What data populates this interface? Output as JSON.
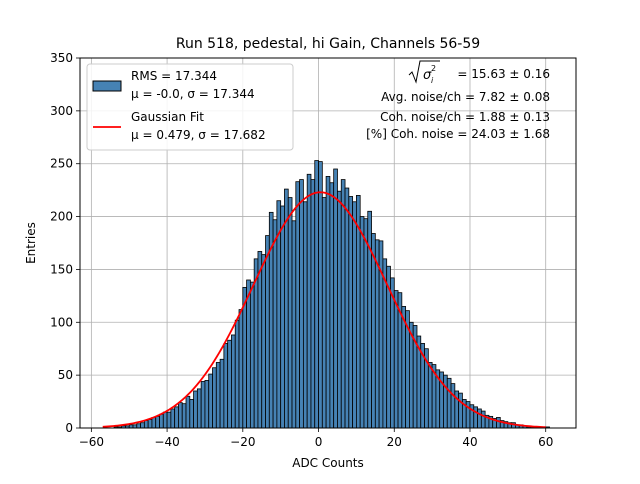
{
  "chart_data": {
    "type": "bar",
    "title": "Run 518, pedestal, hi Gain, Channels 56-59",
    "xlabel": "ADC Counts",
    "ylabel": "Entries",
    "xlim": [
      -63,
      68
    ],
    "ylim": [
      0,
      350
    ],
    "xticks": [
      -60,
      -40,
      -20,
      0,
      20,
      40,
      60
    ],
    "yticks": [
      0,
      50,
      100,
      150,
      200,
      250,
      300,
      350
    ],
    "grid": true,
    "bar_color": "#4682b4",
    "fit_color": "#ff0000",
    "legend_position": "upper-left",
    "legend": {
      "histogram_line1": "RMS = 17.344",
      "histogram_line2": "μ = -0.0, σ = 17.344",
      "fit_line1": "Gaussian Fit",
      "fit_line2": "μ = 0.479, σ = 17.682"
    },
    "annotations": {
      "sigma_value": "= 15.63 ± 0.16",
      "avg_noise": "Avg. noise/ch = 7.82 ± 0.08",
      "coh_noise": "Coh. noise/ch = 1.88 ± 0.13",
      "coh_noise_pct": "[%] Coh. noise = 24.03 ± 1.68"
    },
    "histogram": {
      "bin_width": 1,
      "x": [
        -56,
        -55,
        -54,
        -53,
        -52,
        -51,
        -50,
        -49,
        -48,
        -47,
        -46,
        -45,
        -44,
        -43,
        -42,
        -41,
        -40,
        -39,
        -38,
        -37,
        -36,
        -35,
        -34,
        -33,
        -32,
        -31,
        -30,
        -29,
        -28,
        -27,
        -26,
        -25,
        -24,
        -23,
        -22,
        -21,
        -20,
        -19,
        -18,
        -17,
        -16,
        -15,
        -14,
        -13,
        -12,
        -11,
        -10,
        -9,
        -8,
        -7,
        -6,
        -5,
        -4,
        -3,
        -2,
        -1,
        0,
        1,
        2,
        3,
        4,
        5,
        6,
        7,
        8,
        9,
        10,
        11,
        12,
        13,
        14,
        15,
        16,
        17,
        18,
        19,
        20,
        21,
        22,
        23,
        24,
        25,
        26,
        27,
        28,
        29,
        30,
        31,
        32,
        33,
        34,
        35,
        36,
        37,
        38,
        39,
        40,
        41,
        42,
        43,
        44,
        45,
        46,
        47,
        48,
        49,
        50,
        51,
        52,
        53,
        54,
        55,
        56,
        57,
        58,
        59,
        60,
        61
      ],
      "values": [
        0,
        0,
        1,
        1,
        2,
        2,
        3,
        3,
        4,
        5,
        7,
        8,
        10,
        11,
        13,
        15,
        15,
        18,
        20,
        24,
        23,
        30,
        27,
        35,
        37,
        44,
        45,
        51,
        57,
        62,
        65,
        80,
        83,
        88,
        102,
        112,
        133,
        140,
        138,
        160,
        167,
        164,
        182,
        204,
        197,
        215,
        210,
        226,
        218,
        196,
        233,
        235,
        214,
        240,
        235,
        253,
        252,
        218,
        238,
        232,
        245,
        224,
        235,
        227,
        219,
        214,
        220,
        200,
        198,
        205,
        184,
        178,
        177,
        160,
        153,
        142,
        130,
        128,
        115,
        111,
        100,
        97,
        87,
        80,
        75,
        62,
        60,
        55,
        53,
        50,
        47,
        42,
        35,
        33,
        27,
        25,
        22,
        20,
        18,
        16,
        12,
        11,
        9,
        10,
        7,
        6,
        5,
        5,
        3,
        3,
        2,
        1,
        1,
        1,
        0,
        0,
        1,
        0
      ]
    },
    "gaussian_fit": {
      "mu": 0.479,
      "sigma": 17.682,
      "amplitude": 223,
      "x_range": [
        -57,
        60
      ]
    }
  }
}
